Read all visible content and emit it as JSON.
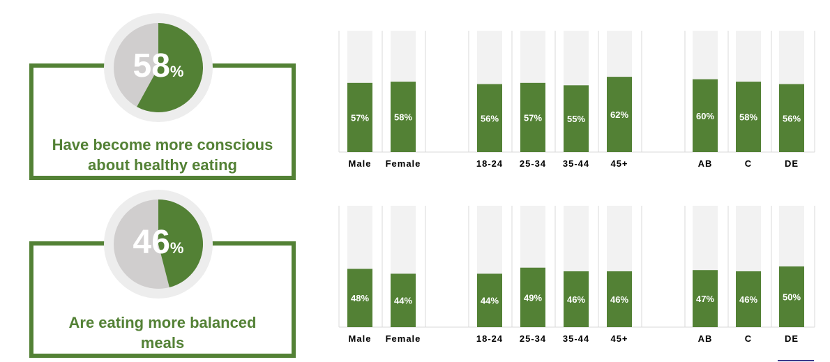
{
  "colors": {
    "accent": "#538135",
    "track": "#f2f2f2",
    "donut_rest": "#d0cece",
    "ring": "#ededed",
    "grid": "#d9d9d9"
  },
  "stats": [
    {
      "value": "58",
      "unit": "%",
      "fraction": 0.58,
      "caption_lines": [
        "Have become more conscious",
        "about healthy eating"
      ]
    },
    {
      "value": "46",
      "unit": "%",
      "fraction": 0.46,
      "caption_lines": [
        "Are eating more balanced",
        "meals"
      ]
    }
  ],
  "chart_data": [
    {
      "type": "bar",
      "categories": [
        "Male",
        "Female",
        "18-24",
        "25-34",
        "35-44",
        "45+",
        "AB",
        "C",
        "DE"
      ],
      "values": [
        57,
        58,
        56,
        57,
        55,
        62,
        60,
        58,
        56
      ],
      "data_labels": [
        "57%",
        "58%",
        "56%",
        "57%",
        "55%",
        "62%",
        "60%",
        "58%",
        "56%"
      ],
      "ylim": [
        0,
        100
      ],
      "grid": true
    },
    {
      "type": "bar",
      "categories": [
        "Male",
        "Female",
        "18-24",
        "25-34",
        "35-44",
        "45+",
        "AB",
        "C",
        "DE"
      ],
      "values": [
        48,
        44,
        44,
        49,
        46,
        46,
        47,
        46,
        50
      ],
      "data_labels": [
        "48%",
        "44%",
        "44%",
        "49%",
        "46%",
        "46%",
        "47%",
        "46%",
        "50%"
      ],
      "ylim": [
        0,
        100
      ],
      "grid": true
    }
  ]
}
